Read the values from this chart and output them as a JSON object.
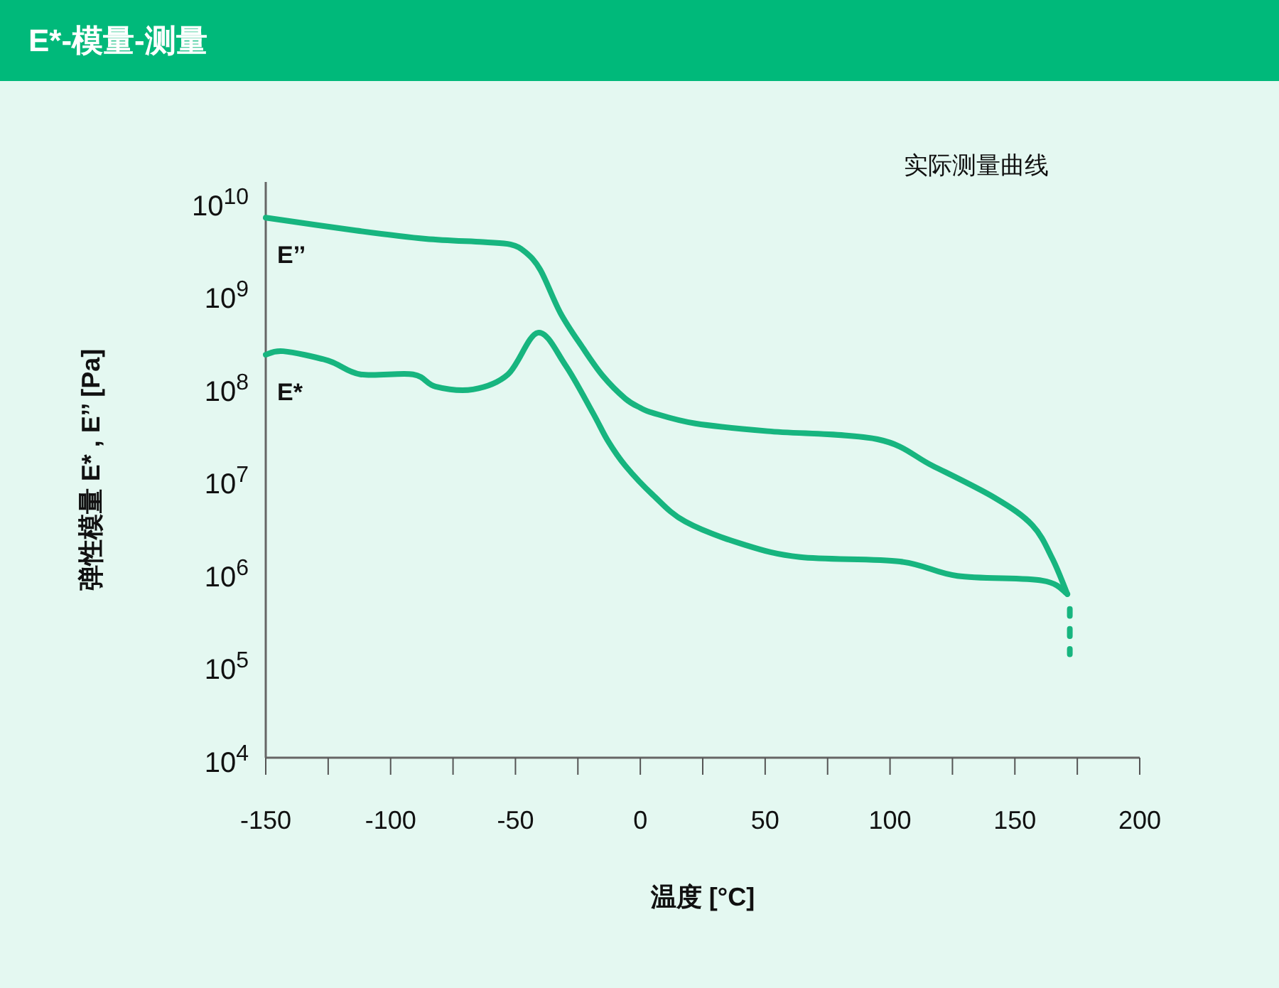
{
  "chart_data": {
    "type": "line",
    "title": "E*-模量-测量",
    "xlabel": "温度 [°C]",
    "ylabel": "弹性模量 E* , E’’ [Pa]",
    "annotations": [
      "实际测量曲线"
    ],
    "log": "y",
    "line_style": "solid",
    "marker": "none",
    "grid": false,
    "xlim": [
      -150,
      200
    ],
    "ylim": [
      10000,
      16000000000
    ],
    "xticks": [
      -150,
      {
        "value": -125,
        "label": null
      },
      -100,
      {
        "value": -75,
        "label": null
      },
      -50,
      {
        "value": -25,
        "label": null
      },
      0,
      {
        "value": 25,
        "label": null
      },
      50,
      {
        "value": 75,
        "label": null
      },
      100,
      {
        "value": 125,
        "label": null
      },
      150,
      {
        "value": 175,
        "label": null
      },
      200
    ],
    "yticks": [
      {
        "value": 10000,
        "label": "10$^{4}$"
      },
      {
        "value": 100000,
        "label": "10$^{5}$"
      },
      {
        "value": 1000000,
        "label": "10$^{6}$"
      },
      {
        "value": 10000000,
        "label": "10$^{7}$"
      },
      {
        "value": 100000000,
        "label": "10$^{8}$"
      },
      {
        "value": 1000000000,
        "label": "10$^{9}$"
      },
      {
        "value": 10000000000,
        "label": "10$^{10}$"
      }
    ],
    "series": [
      {
        "name": "E’’",
        "color": "#17b57f",
        "x": [
          -150,
          -114,
          -86,
          -63,
          -52,
          -46,
          -40,
          -32,
          -23,
          -15,
          -6,
          0,
          5,
          22,
          51,
          95,
          117,
          142,
          157,
          165,
          171
        ],
        "values": [
          6600000000,
          4800000000,
          3900000000,
          3600000000,
          3400000000,
          2800000000,
          1800000000,
          620000000,
          260000000,
          130000000,
          74000000,
          59000000,
          52000000,
          40000000,
          33000000,
          27000000,
          14000000,
          6300000,
          3200000,
          1400000,
          580000
        ]
      },
      {
        "name": "E*",
        "color": "#17b57f",
        "x": [
          -150,
          -143,
          -125,
          -112,
          -91,
          -82,
          -67,
          -53,
          -41,
          -30,
          -19,
          -13,
          -6,
          5,
          18,
          41,
          64,
          104,
          127,
          161,
          171
        ],
        "values": [
          220000000,
          240000000,
          190000000,
          135000000,
          135000000,
          100000000,
          93000000,
          135000000,
          380000000,
          170000000,
          52000000,
          26000000,
          14000000,
          6800000,
          3500000,
          2000000,
          1450000,
          1300000,
          910000,
          810000,
          580000
        ]
      },
      {
        "color": "#17b57f",
        "line_style": "dashed",
        "x": [
          172,
          172
        ],
        "values": [
          400000,
          130000
        ]
      }
    ]
  }
}
